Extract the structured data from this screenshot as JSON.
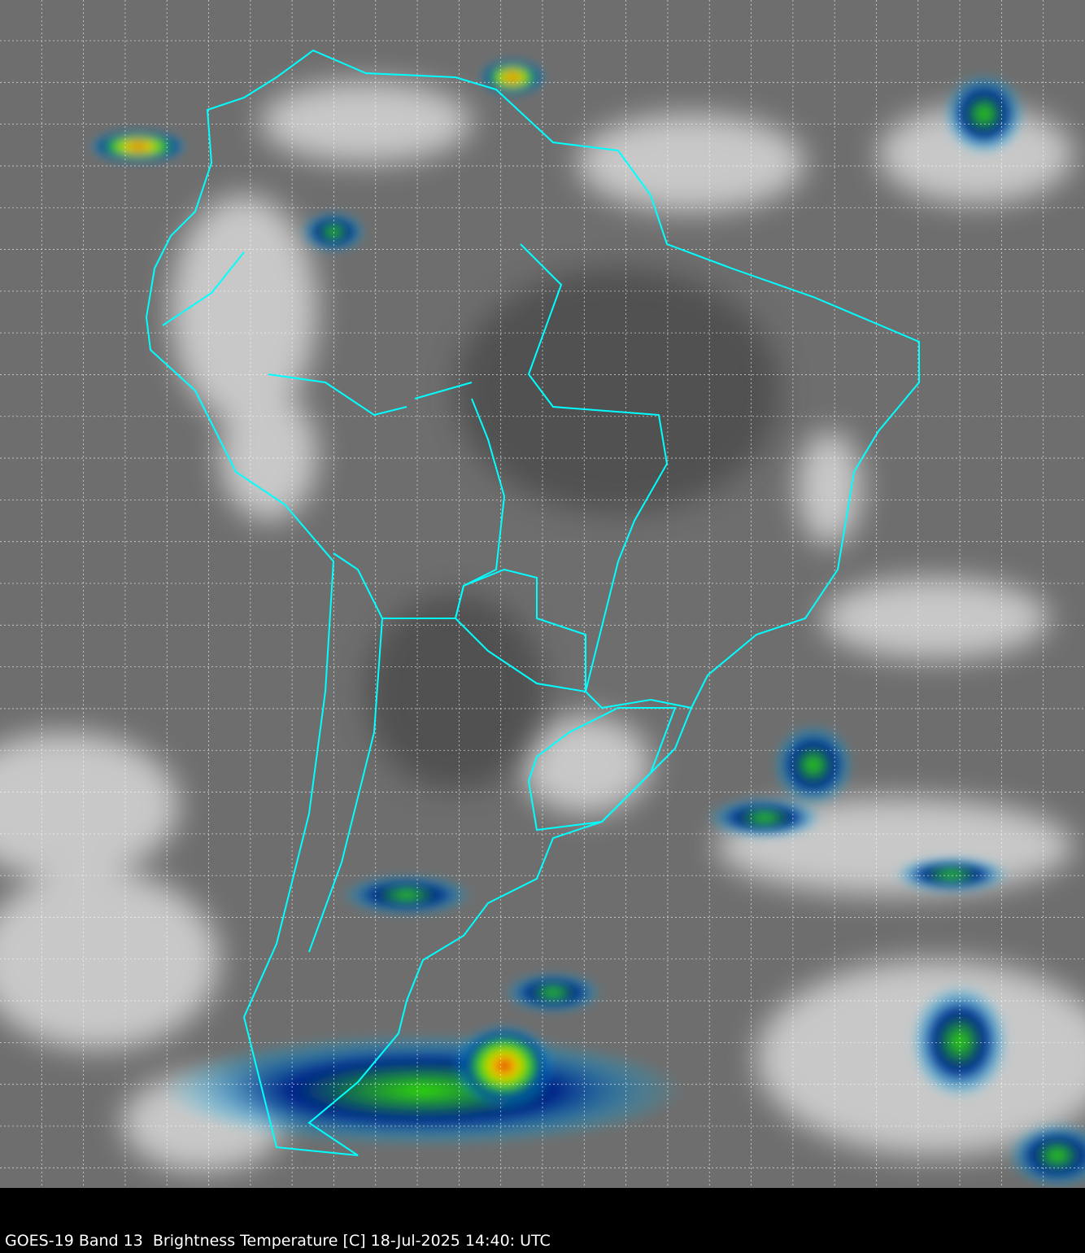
{
  "caption": "GOES-19 Band 13  Brightness Temperature [C] 18-Jul-2025 14:40: UTC",
  "colors": {
    "background_gray": "#6e6e6e",
    "border_lines": "#00ffff",
    "grid": "#ffffff",
    "frame": "#000000"
  },
  "layers": {
    "borders": "country and state boundaries",
    "grid": "latitude/longitude dashed grid"
  }
}
